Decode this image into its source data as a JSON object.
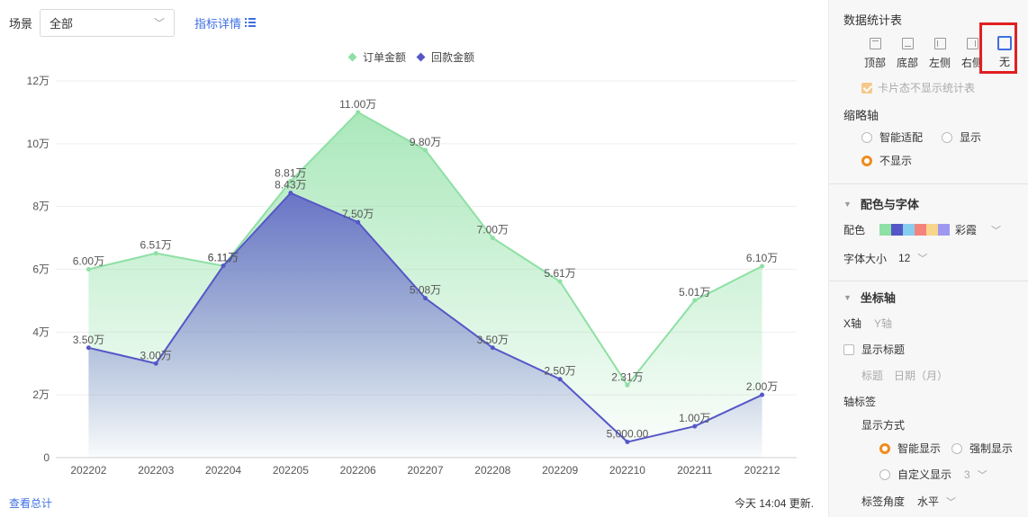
{
  "toolbar": {
    "scene_label": "场景",
    "scene_value": "全部",
    "detail_link": "指标详情"
  },
  "footer": {
    "view_total": "查看总计",
    "updated": "今天 14:04 更新."
  },
  "panel": {
    "table_section_title": "数据统计表",
    "positions": [
      "顶部",
      "底部",
      "左侧",
      "右侧",
      "无"
    ],
    "selected_position": "无",
    "card_hide_label": "卡片态不显示统计表",
    "thumb_axis_title": "缩略轴",
    "thumb_options": [
      "智能适配",
      "显示",
      "不显示"
    ],
    "thumb_selected": "不显示",
    "color_font_title": "配色与字体",
    "palette_label": "配色",
    "palette_name": "彩霞",
    "palette_colors": [
      "#8ee0a4",
      "#5657c7",
      "#87cdf0",
      "#f5837d",
      "#f7d58a",
      "#9f98f0"
    ],
    "font_size_label": "字体大小",
    "font_size_value": "12",
    "axis_title": "坐标轴",
    "axis_tabs": [
      "X轴",
      "Y轴"
    ],
    "show_title_label": "显示标题",
    "title_label": "标题",
    "title_placeholder": "日期（月）",
    "axis_label_title": "轴标签",
    "display_mode_label": "显示方式",
    "display_options": [
      "智能显示",
      "强制显示",
      "自定义显示"
    ],
    "display_selected": "智能显示",
    "custom_value": "3",
    "label_angle_label": "标签角度",
    "label_angle_value": "水平"
  },
  "chart_data": {
    "type": "area",
    "categories": [
      "202202",
      "202203",
      "202204",
      "202205",
      "202206",
      "202207",
      "202208",
      "202209",
      "202210",
      "202211",
      "202212"
    ],
    "series": [
      {
        "name": "订单金额",
        "color": "#8ee0a4",
        "values": [
          60000,
          65100,
          61100,
          88100,
          110000,
          98000,
          70000,
          56100,
          23100,
          50100,
          61000
        ],
        "labels": [
          "6.00万",
          "6.51万",
          "6.11万",
          "8.81万",
          "11.00万",
          "9.80万",
          "7.00万",
          "5.61万",
          "2.31万",
          "5.01万",
          "6.10万"
        ]
      },
      {
        "name": "回款金额",
        "color": "#5657c7",
        "values": [
          35000,
          30000,
          61100,
          84300,
          75000,
          50800,
          35000,
          25000,
          5000,
          10000,
          20000
        ],
        "labels": [
          "3.50万",
          "3.00万",
          "6.11万",
          "8.43万",
          "7.50万",
          "5.08万",
          "3.50万",
          "2.50万",
          "5,000.00",
          "1.00万",
          "2.00万"
        ]
      }
    ],
    "y_ticks": [
      "0",
      "2万",
      "4万",
      "6万",
      "8万",
      "10万",
      "12万"
    ],
    "y_tick_values": [
      0,
      20000,
      40000,
      60000,
      80000,
      100000,
      120000
    ],
    "ylim": [
      0,
      120000
    ],
    "legend_position": "top-center",
    "grid": true
  }
}
